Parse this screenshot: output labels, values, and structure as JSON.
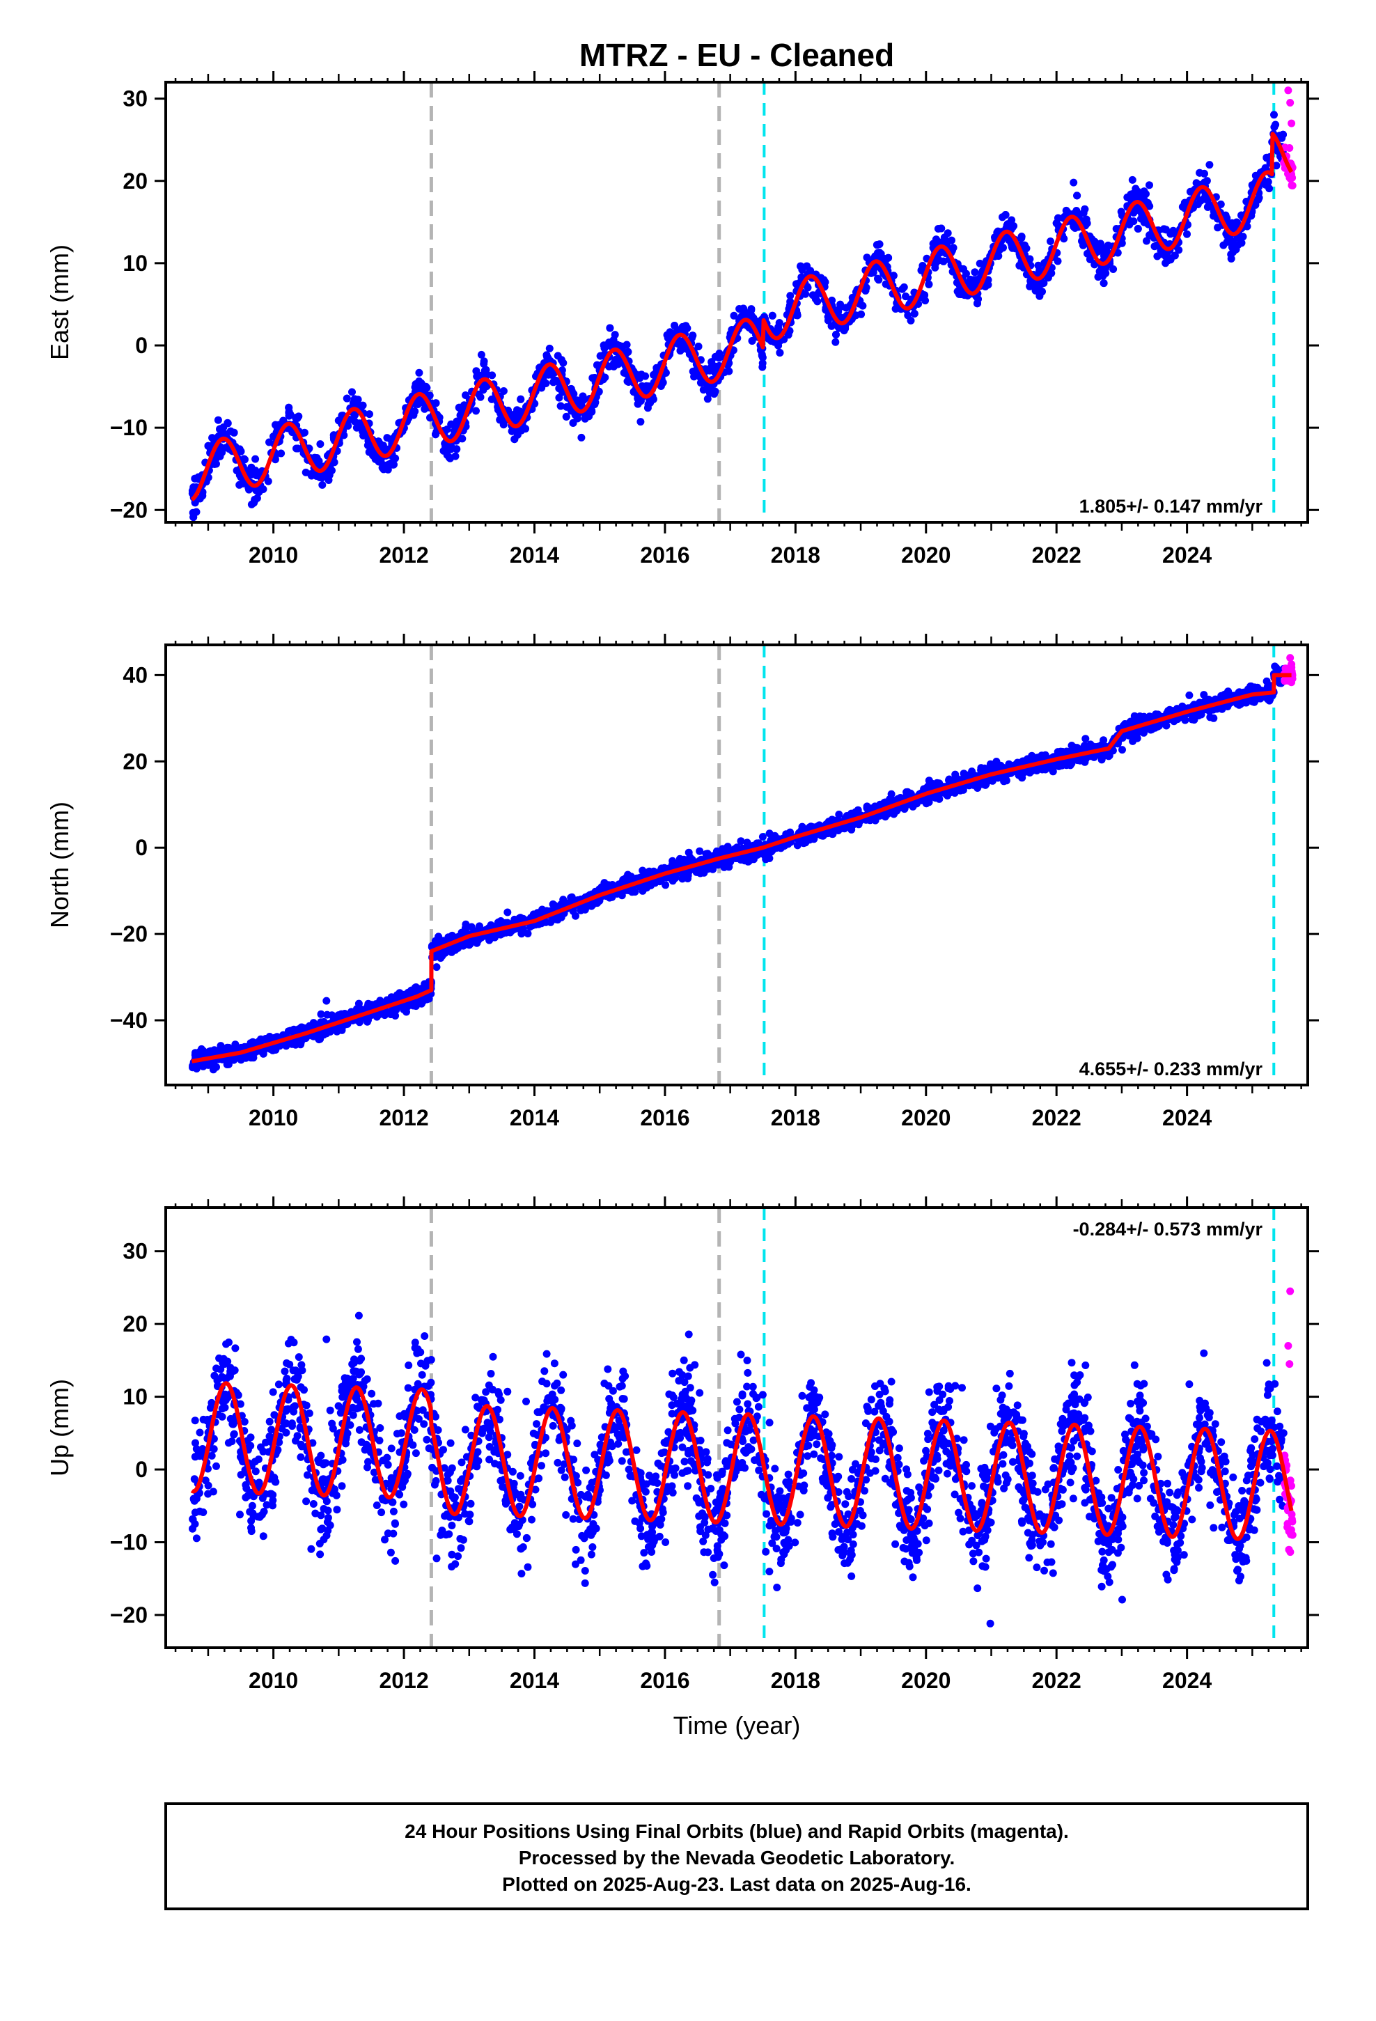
{
  "chart_data": [
    {
      "type": "scatter",
      "panel": "east",
      "title": "MTRZ  - EU - Cleaned",
      "ylabel": "East (mm)",
      "xlabel": "",
      "xlim": [
        2008.35,
        2025.85
      ],
      "ylim": [
        -21.5,
        32.0
      ],
      "xticks": [
        2010,
        2012,
        2014,
        2016,
        2018,
        2020,
        2022,
        2024
      ],
      "yticks": [
        -20,
        -10,
        0,
        10,
        20,
        30
      ],
      "rate_text": "1.805+/- 0.147 mm/yr",
      "rate_pos": "bottom-right",
      "trend": {
        "t0": 2008.75,
        "y0": -15.5,
        "rate": 1.805,
        "amp": 3.3,
        "phase": 0.45,
        "steps": [
          {
            "t": 2017.5,
            "dy": 3.5
          },
          {
            "t": 2025.3,
            "dy": 5.0
          }
        ],
        "end": 2025.6
      },
      "scatter_sd": 1.5,
      "equipment_changes": [
        2012.42,
        2016.83
      ],
      "other_events": [
        2017.52,
        2025.33
      ],
      "final_orbits_range": [
        2008.75,
        2025.48
      ],
      "rapid_orbits_range": [
        2025.48,
        2025.62
      ],
      "rapid_extra": [
        [
          2025.55,
          31.0
        ],
        [
          2025.58,
          29.5
        ],
        [
          2025.6,
          27.0
        ],
        [
          2025.57,
          24.0
        ]
      ]
    },
    {
      "type": "scatter",
      "panel": "north",
      "ylabel": "North (mm)",
      "xlabel": "",
      "xlim": [
        2008.35,
        2025.85
      ],
      "ylim": [
        -55.0,
        47.0
      ],
      "xticks": [
        2010,
        2012,
        2014,
        2016,
        2018,
        2020,
        2022,
        2024
      ],
      "yticks": [
        -40,
        -20,
        0,
        20,
        40
      ],
      "rate_text": "4.655+/- 0.233 mm/yr",
      "rate_pos": "bottom-right",
      "trend_points": [
        [
          2008.75,
          -49.5
        ],
        [
          2009.5,
          -47.5
        ],
        [
          2010.5,
          -43
        ],
        [
          2011.5,
          -38
        ],
        [
          2012.2,
          -34.5
        ],
        [
          2012.42,
          -33
        ],
        [
          2012.421,
          -24
        ],
        [
          2013.0,
          -20.5
        ],
        [
          2014.0,
          -17
        ],
        [
          2015.0,
          -11
        ],
        [
          2016.0,
          -6
        ],
        [
          2016.83,
          -2.5
        ],
        [
          2017.5,
          0
        ],
        [
          2018.0,
          2.5
        ],
        [
          2019.0,
          7
        ],
        [
          2020.0,
          12.5
        ],
        [
          2021.0,
          17
        ],
        [
          2022.0,
          20.5
        ],
        [
          2022.8,
          23
        ],
        [
          2023.0,
          27
        ],
        [
          2024.0,
          31.5
        ],
        [
          2025.0,
          35.5
        ],
        [
          2025.33,
          36
        ],
        [
          2025.331,
          40
        ],
        [
          2025.6,
          40
        ]
      ],
      "scatter_sd": 1.4,
      "equipment_changes": [
        2012.42,
        2016.83
      ],
      "other_events": [
        2017.52,
        2025.33
      ],
      "final_orbits_range": [
        2008.75,
        2025.48
      ],
      "rapid_orbits_range": [
        2025.48,
        2025.62
      ],
      "rapid_extra": [
        [
          2025.58,
          44.0
        ],
        [
          2025.6,
          42.5
        ]
      ]
    },
    {
      "type": "scatter",
      "panel": "up",
      "ylabel": "Up (mm)",
      "xlabel": "Time (year)",
      "xlim": [
        2008.35,
        2025.85
      ],
      "ylim": [
        -24.5,
        36.0
      ],
      "xticks": [
        2010,
        2012,
        2014,
        2016,
        2018,
        2020,
        2022,
        2024
      ],
      "yticks": [
        -20,
        -10,
        0,
        10,
        20,
        30
      ],
      "rate_text": "-0.284+/- 0.573 mm/yr",
      "rate_pos": "top-right",
      "trend": {
        "t0": 2008.75,
        "y0": 4.5,
        "rate": -0.284,
        "amp": 7.5,
        "phase": 0.55,
        "steps": [
          {
            "t": 2012.42,
            "dy": -2.0
          }
        ],
        "end": 2025.6
      },
      "scatter_sd": 5.0,
      "equipment_changes": [
        2012.42,
        2016.83
      ],
      "other_events": [
        2017.52,
        2025.33
      ],
      "final_orbits_range": [
        2008.75,
        2025.48
      ],
      "rapid_orbits_range": [
        2025.48,
        2025.62
      ],
      "rapid_extra": [
        [
          2025.58,
          24.5
        ],
        [
          2025.55,
          17.0
        ],
        [
          2025.57,
          14.5
        ]
      ]
    }
  ],
  "styles": {
    "final_orbits_color": "#0000ff",
    "rapid_orbits_color": "#ff00ff",
    "model_color": "#ff0000",
    "equipment_change_color": "#b4b4b4",
    "event_color": "#00e5ee"
  },
  "footer": {
    "line1": "24 Hour Positions Using Final Orbits (blue) and Rapid Orbits (magenta).",
    "line2": "Processed by the Nevada Geodetic Laboratory.",
    "line3": "Plotted on 2025-Aug-23. Last data on 2025-Aug-16."
  }
}
